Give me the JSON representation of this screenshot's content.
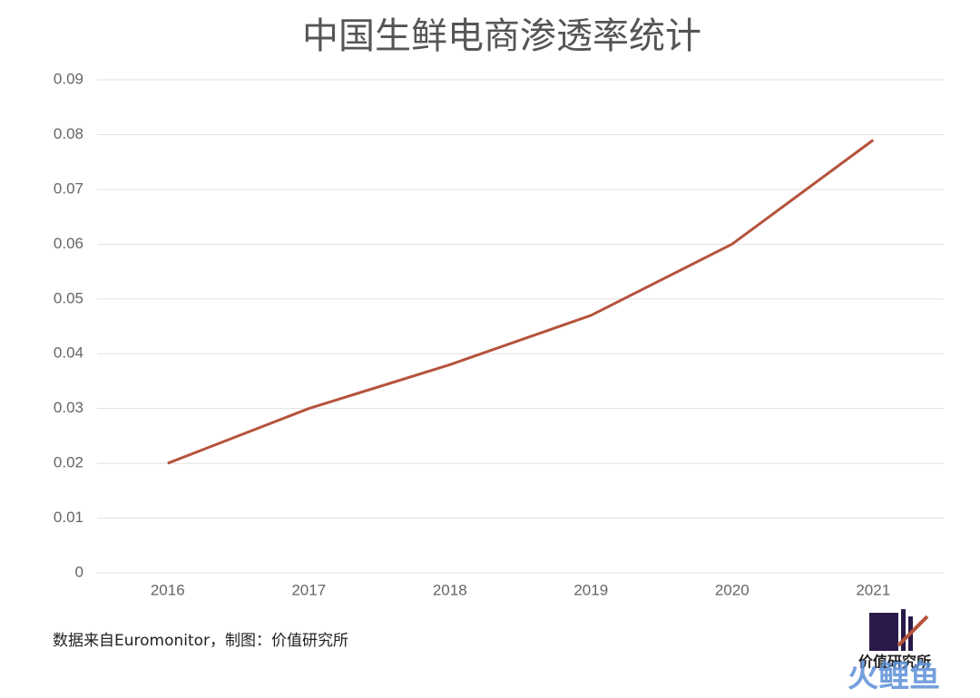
{
  "chart_data": {
    "type": "line",
    "title": "中国生鲜电商渗透率统计",
    "categories": [
      "2016",
      "2017",
      "2018",
      "2019",
      "2020",
      "2021"
    ],
    "series": [
      {
        "name": "渗透率",
        "color": "#b5533c",
        "values": [
          0.02,
          0.03,
          0.038,
          0.047,
          0.06,
          0.079
        ]
      }
    ],
    "ylim": [
      0,
      0.09
    ],
    "yticks": [
      0,
      0.01,
      0.02,
      0.03,
      0.04,
      0.05,
      0.06,
      0.07,
      0.08,
      0.09
    ],
    "grid": true,
    "source": "数据来自Euromonitor，制图：价值研究所",
    "logo_text": "价值研究所",
    "watermark": "火鲤鱼"
  }
}
